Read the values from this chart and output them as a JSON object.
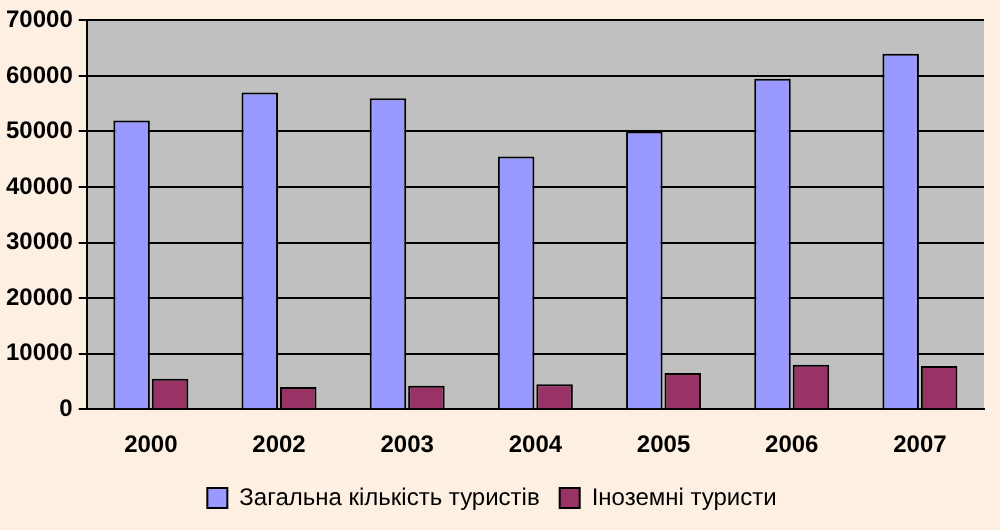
{
  "chart_data": {
    "type": "bar",
    "categories": [
      "2000",
      "2002",
      "2003",
      "2004",
      "2005",
      "2006",
      "2007"
    ],
    "series": [
      {
        "name": "Загальна кількість туристів",
        "color": "#9999ff",
        "values": [
          52000,
          57000,
          56000,
          45500,
          50000,
          59500,
          64000
        ]
      },
      {
        "name": "Іноземні туристи",
        "color": "#993366",
        "values": [
          5500,
          4000,
          4200,
          4500,
          6500,
          8000,
          7800
        ]
      }
    ],
    "ylim": [
      0,
      70000
    ],
    "yticks": [
      0,
      10000,
      20000,
      30000,
      40000,
      50000,
      60000,
      70000
    ],
    "grid": "y",
    "legend": "bottom"
  }
}
